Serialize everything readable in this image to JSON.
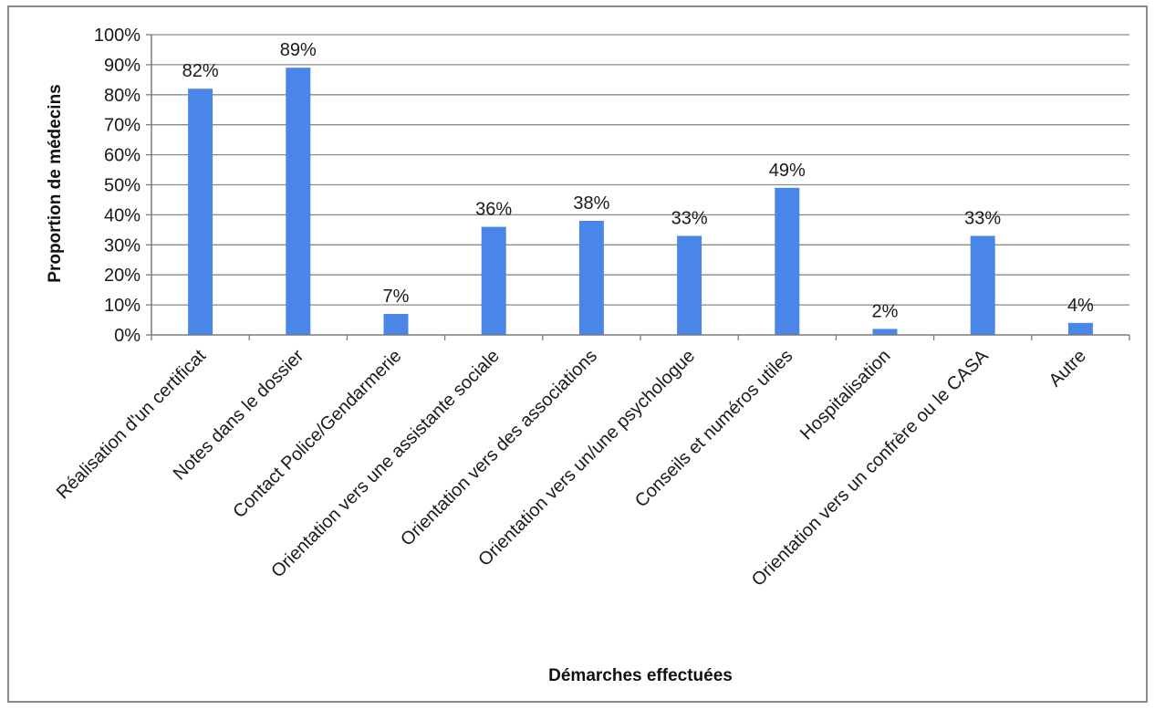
{
  "chart_data": {
    "type": "bar",
    "categories": [
      "Réalisation d'un certificat",
      "Notes dans le dossier",
      "Contact Police/Gendarmerie",
      "Orientation vers une assistante sociale",
      "Orientation vers des associations",
      "Orientation vers un/une psychologue",
      "Conseils et numéros utiles",
      "Hospitalisation",
      "Orientation vers un confrère ou le CASA",
      "Autre"
    ],
    "values": [
      82,
      89,
      7,
      36,
      38,
      33,
      49,
      2,
      33,
      4
    ],
    "data_labels": [
      "82%",
      "89%",
      "7%",
      "36%",
      "38%",
      "33%",
      "49%",
      "2%",
      "33%",
      "4%"
    ],
    "title": "",
    "xlabel": "Démarches effectuées",
    "ylabel": "Proportion de médecins",
    "ylim": [
      0,
      100
    ],
    "y_ticks": [
      "0%",
      "10%",
      "20%",
      "30%",
      "40%",
      "50%",
      "60%",
      "70%",
      "80%",
      "90%",
      "100%"
    ],
    "grid": true,
    "legend": "none",
    "colors": {
      "bar": "#4a86e8",
      "grid": "#8a8a8a",
      "axis": "#7a7a7a",
      "border": "#8c8c8c"
    }
  }
}
